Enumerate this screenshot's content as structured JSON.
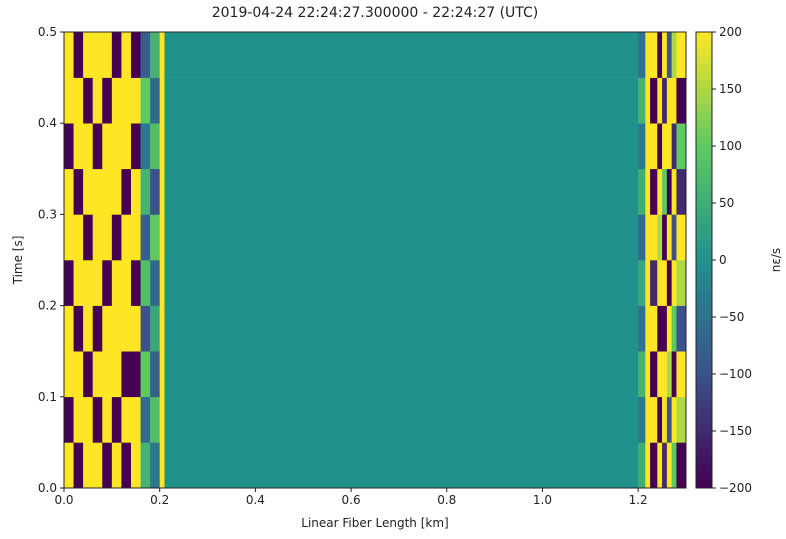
{
  "chart_data": {
    "type": "heatmap",
    "title": "2019-04-24 22:24:27.300000 - 22:24:27 (UTC)",
    "x_label": "Linear Fiber Length [km]",
    "y_label": "Time [s]",
    "colorbar_label": "nε/s",
    "colormap": "viridis",
    "x_edges": [
      0,
      0.02,
      0.04,
      0.06,
      0.08,
      0.1,
      0.12,
      0.14,
      0.16,
      0.18,
      0.2,
      0.21,
      1.2,
      1.215,
      1.225,
      1.24,
      1.25,
      1.26,
      1.27,
      1.28,
      1.3
    ],
    "y_edges": [
      0,
      0.05,
      0.1,
      0.15,
      0.2,
      0.25,
      0.3,
      0.35,
      0.4,
      0.45,
      0.5
    ],
    "values": [
      [
        200,
        -200,
        200,
        200,
        -200,
        200,
        -200,
        200,
        60,
        -40,
        200,
        0,
        50,
        200,
        -200,
        200,
        -150,
        200,
        100,
        -200
      ],
      [
        -200,
        200,
        200,
        -200,
        200,
        -200,
        200,
        200,
        -60,
        80,
        200,
        0,
        -40,
        200,
        200,
        -200,
        200,
        -100,
        200,
        150
      ],
      [
        200,
        200,
        -200,
        200,
        200,
        200,
        -200,
        -200,
        100,
        -80,
        200,
        0,
        60,
        200,
        -200,
        200,
        200,
        150,
        -200,
        200
      ],
      [
        200,
        -200,
        200,
        -200,
        200,
        200,
        200,
        200,
        -100,
        40,
        200,
        0,
        -50,
        200,
        200,
        -200,
        -200,
        200,
        100,
        -100
      ],
      [
        -200,
        200,
        200,
        200,
        -200,
        200,
        200,
        -200,
        80,
        -60,
        200,
        0,
        40,
        200,
        -150,
        200,
        200,
        -200,
        200,
        150
      ],
      [
        200,
        200,
        -200,
        200,
        200,
        -200,
        200,
        200,
        -80,
        100,
        200,
        0,
        -60,
        200,
        200,
        150,
        -200,
        200,
        -100,
        200
      ],
      [
        200,
        -200,
        200,
        200,
        200,
        200,
        -200,
        200,
        60,
        -100,
        200,
        0,
        50,
        200,
        -200,
        200,
        100,
        -200,
        200,
        -150
      ],
      [
        -200,
        200,
        200,
        -200,
        200,
        200,
        200,
        -200,
        -40,
        80,
        200,
        0,
        -40,
        200,
        200,
        -200,
        200,
        200,
        -150,
        100
      ],
      [
        200,
        200,
        -200,
        200,
        -200,
        200,
        200,
        200,
        100,
        -60,
        200,
        0,
        60,
        200,
        -200,
        200,
        -150,
        200,
        200,
        -200
      ],
      [
        200,
        -200,
        200,
        200,
        200,
        -200,
        200,
        -200,
        -80,
        60,
        200,
        0,
        -50,
        200,
        200,
        -200,
        200,
        -100,
        150,
        200
      ]
    ],
    "xlim": [
      0,
      1.3
    ],
    "ylim": [
      0,
      0.5
    ],
    "clim": [
      -200,
      200
    ],
    "xticks": [
      {
        "value": 0,
        "label": "0.0"
      },
      0.2,
      0.4,
      0.6,
      0.8,
      {
        "value": 1,
        "label": "1.0"
      },
      1.2
    ],
    "yticks": [
      {
        "value": 0,
        "label": "0.0"
      },
      0.1,
      0.2,
      0.3,
      0.4,
      0.5
    ],
    "cticks": [
      {
        "value": -200,
        "label": "−200"
      },
      {
        "value": -150,
        "label": "−150"
      },
      {
        "value": -100,
        "label": "−100"
      },
      {
        "value": -50,
        "label": "−50"
      },
      0,
      50,
      100,
      150,
      200
    ]
  }
}
